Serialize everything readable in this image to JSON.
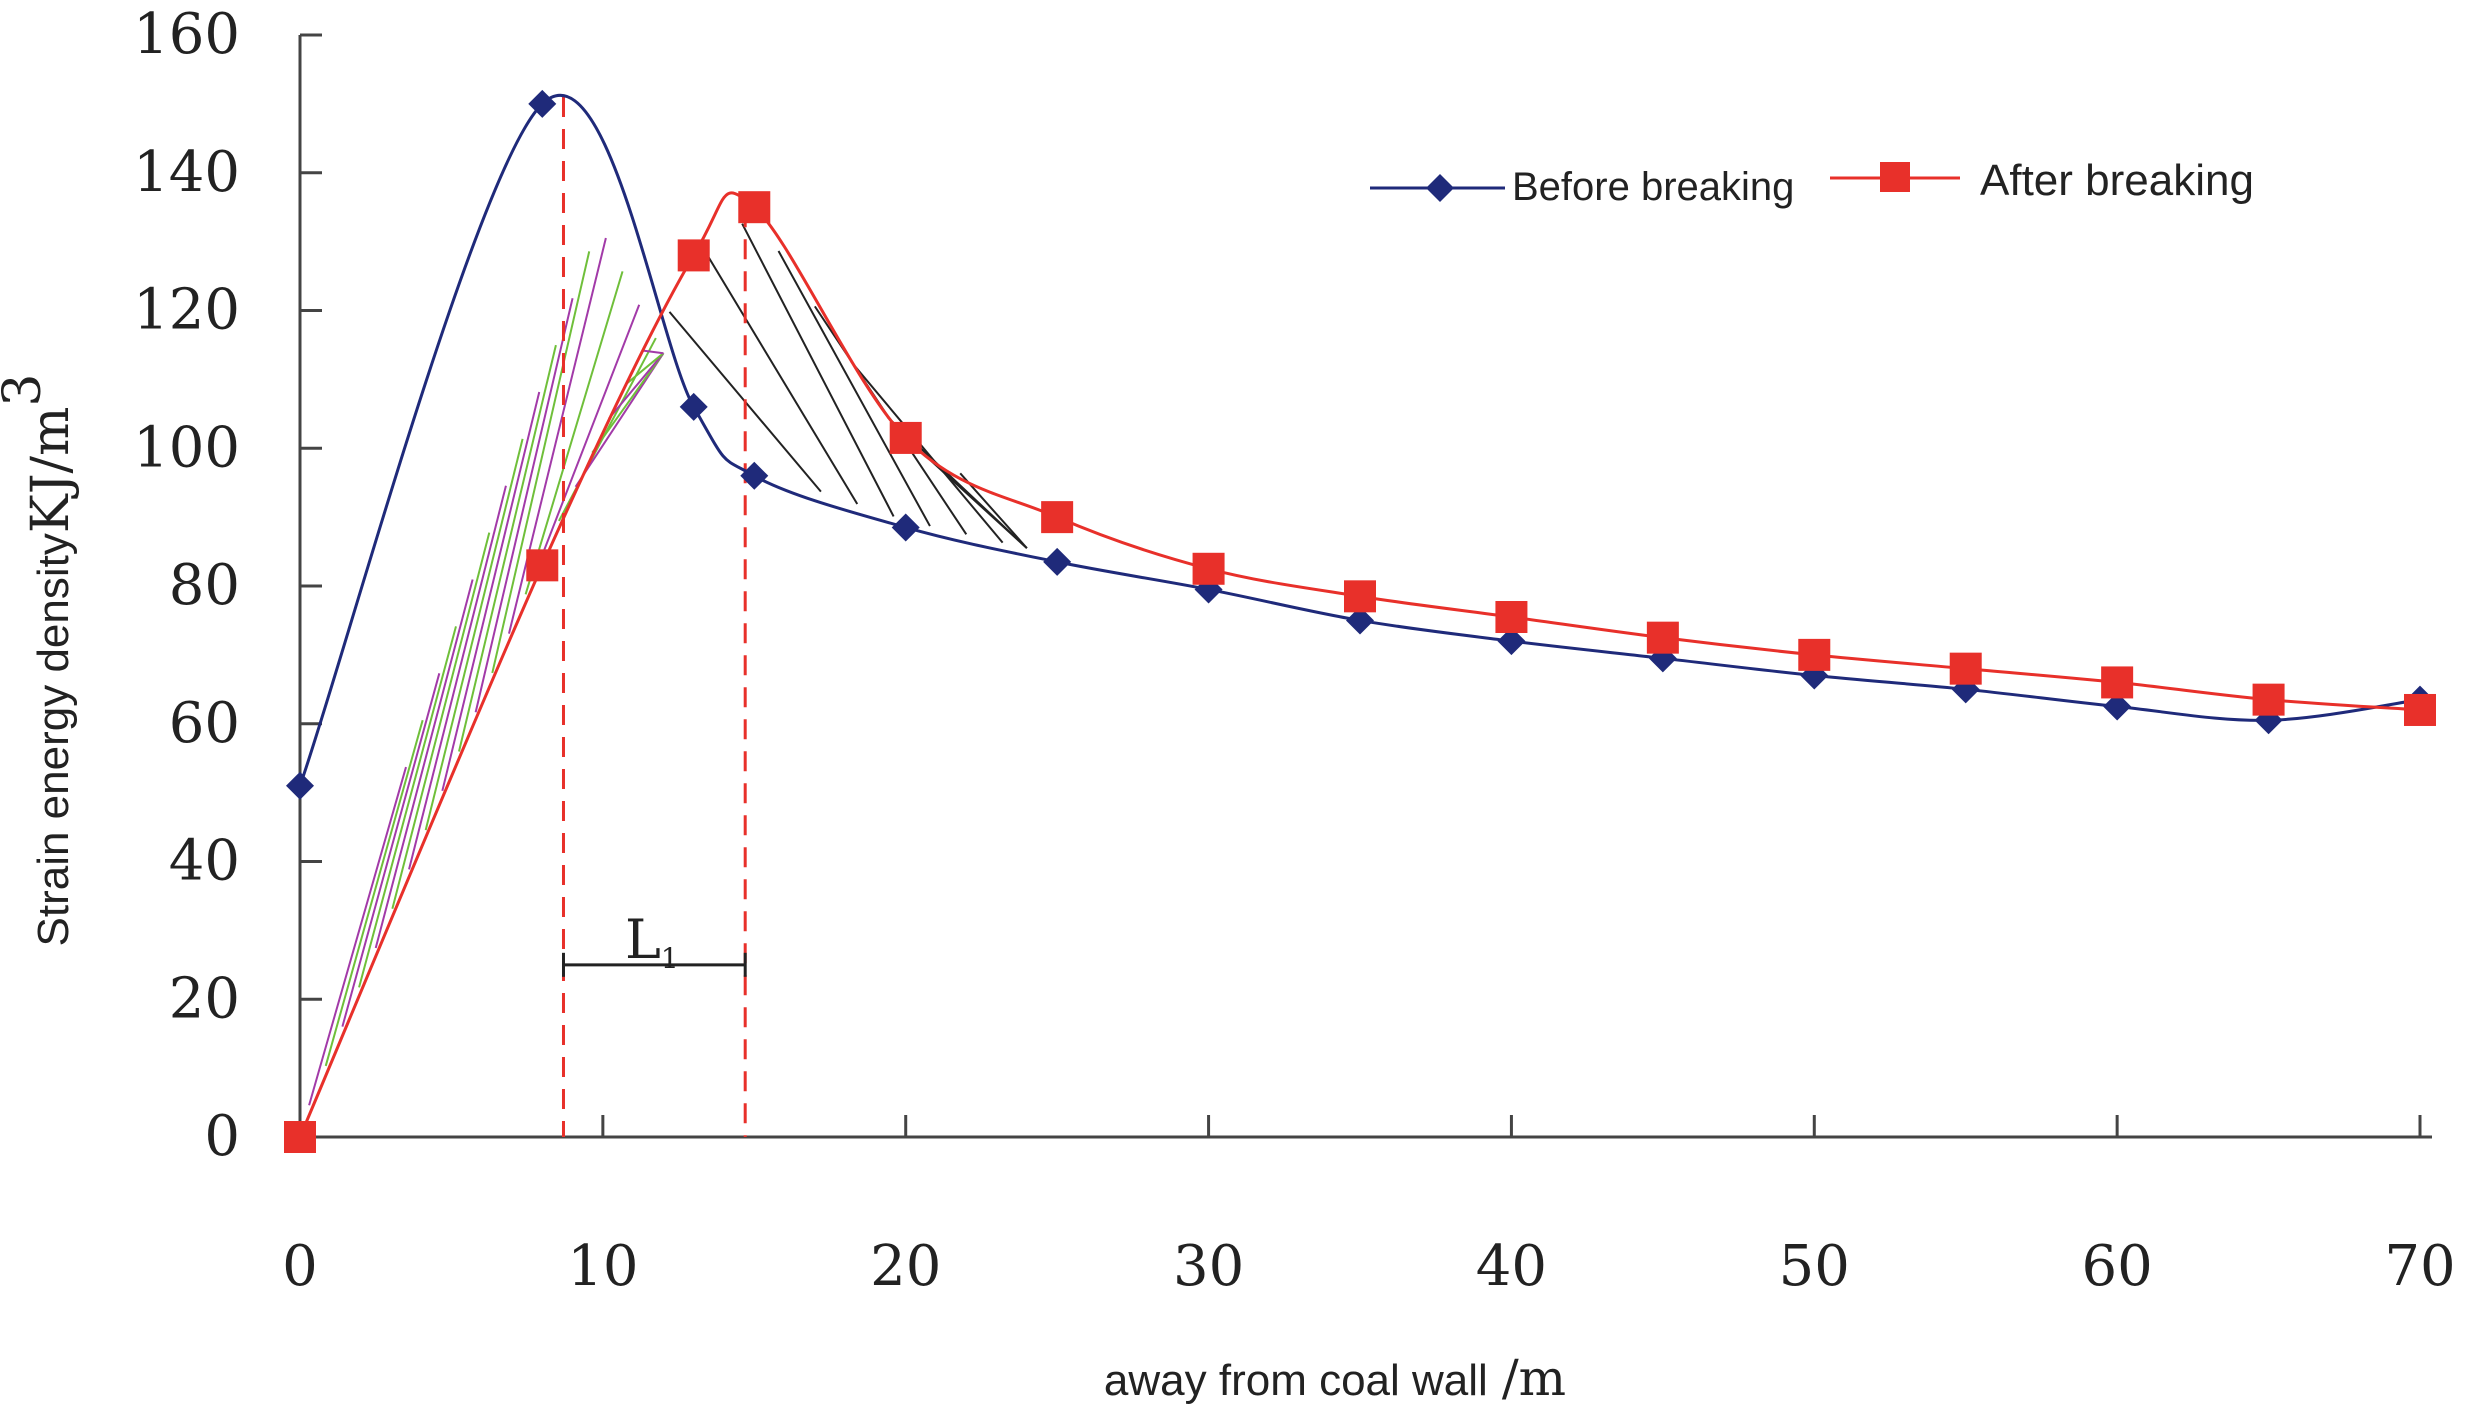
{
  "chart_data": {
    "type": "line",
    "title": "",
    "xlabel": "away from coal wall /m",
    "xlabel_text": "away from coal wall",
    "xlabel_unit": "/m",
    "ylabel": "Strain energy density KJ/m³",
    "ylabel_text": "Strain energy density",
    "ylabel_unit": "KJ/m",
    "ylabel_unit_sup": "3",
    "xlim": [
      0,
      70
    ],
    "ylim": [
      0,
      160
    ],
    "xticks": [
      0,
      10,
      20,
      30,
      40,
      50,
      60,
      70
    ],
    "yticks": [
      0,
      20,
      40,
      60,
      80,
      100,
      120,
      140,
      160
    ],
    "legend_position": "top-right",
    "annotation": {
      "label": "L",
      "subscript": "1",
      "from_x": 8.7,
      "to_x": 14.7
    },
    "series": [
      {
        "name": "Before breaking",
        "color": "#1f2a7a",
        "marker": "diamond",
        "x": [
          0,
          8,
          13,
          15,
          20,
          25,
          30,
          35,
          40,
          45,
          50,
          55,
          60,
          65,
          70
        ],
        "y": [
          51,
          150,
          106,
          96,
          88.5,
          83.5,
          79.5,
          75,
          72,
          69.5,
          67,
          65,
          62.5,
          60.5,
          63.5
        ]
      },
      {
        "name": "After breaking",
        "color": "#e8302a",
        "marker": "square",
        "x": [
          0,
          8,
          13,
          15,
          20,
          25,
          30,
          35,
          40,
          45,
          50,
          55,
          60,
          65,
          70
        ],
        "y": [
          0,
          83,
          128,
          135,
          101.5,
          90,
          82.5,
          78.5,
          75.5,
          72.5,
          70,
          68,
          66,
          63.5,
          62
        ]
      }
    ]
  }
}
